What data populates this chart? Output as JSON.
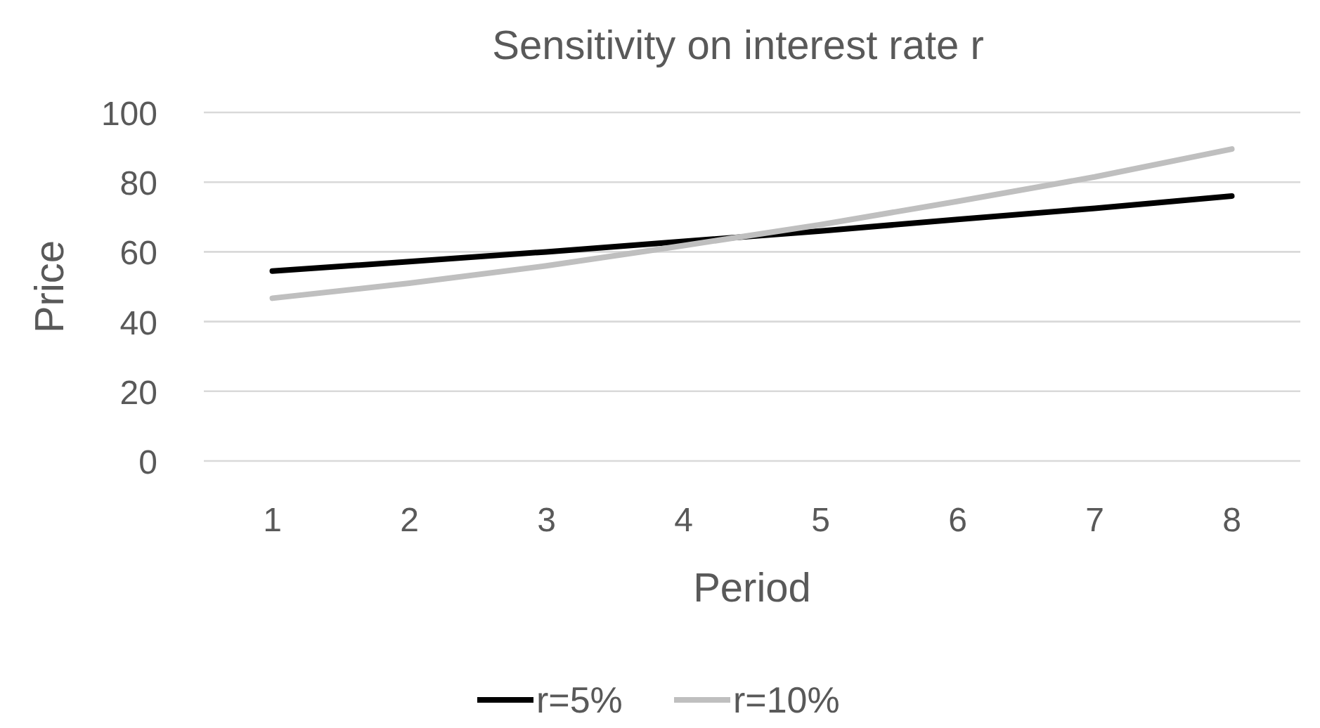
{
  "chart_data": {
    "type": "line",
    "title": "Sensitivity on interest rate r",
    "xlabel": "Period",
    "ylabel": "Price",
    "categories": [
      "1",
      "2",
      "3",
      "4",
      "5",
      "6",
      "7",
      "8"
    ],
    "ylim": [
      0,
      100
    ],
    "yticks": [
      0,
      20,
      40,
      60,
      80,
      100
    ],
    "grid": "y",
    "legend": "bottom",
    "series": [
      {
        "name": "r=5%",
        "color": "#000000",
        "values": [
          54.5,
          57.2,
          60,
          63,
          66,
          69.3,
          72.5,
          76
        ]
      },
      {
        "name": "r=10%",
        "color": "#bfbfbf",
        "values": [
          46.7,
          51,
          56,
          61.8,
          67.8,
          74.5,
          81.5,
          89.5
        ]
      }
    ]
  }
}
